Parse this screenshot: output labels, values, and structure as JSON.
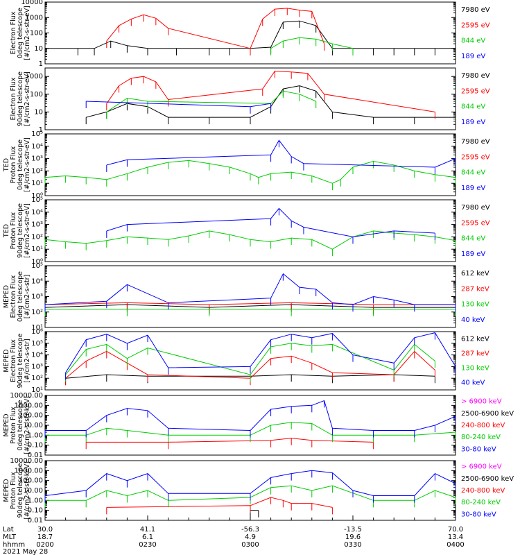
{
  "chart_data": [
    {
      "type": "line",
      "panel": 1,
      "yscale": "log",
      "ylabel_lines": [
        "Electron Flux",
        "0deg telescope",
        "[#/cm2-s-str-eV]"
      ],
      "ytick_labels": [
        "10000",
        "1000",
        "100",
        "10",
        "1"
      ],
      "ytick_values": [
        10000,
        1000,
        100,
        10,
        1
      ],
      "ylim": [
        1,
        10000
      ],
      "series": [
        {
          "name": "7980 eV",
          "color": "#000000",
          "x": [
            0,
            0.08,
            0.12,
            0.16,
            0.2,
            0.25,
            0.32,
            0.4,
            0.45,
            0.5,
            0.55,
            0.58,
            0.62,
            0.66,
            0.7,
            0.75,
            0.8,
            0.85,
            0.9,
            0.95,
            1.0
          ],
          "y": [
            10,
            10,
            10,
            30,
            15,
            10,
            10,
            10,
            10,
            10,
            12,
            500,
            600,
            300,
            10,
            10,
            10,
            10,
            10,
            10,
            10
          ]
        },
        {
          "name": "2595 eV",
          "color": "#ff0000",
          "x": [
            0.15,
            0.18,
            0.21,
            0.24,
            0.27,
            0.3,
            0.5,
            0.53,
            0.56,
            0.59,
            0.62,
            0.65,
            0.68
          ],
          "y": [
            30,
            300,
            800,
            1500,
            900,
            200,
            10,
            800,
            3500,
            4000,
            3000,
            2500,
            20
          ]
        },
        {
          "name": "844 eV",
          "color": "#00cc00",
          "x": [
            0.55,
            0.58,
            0.62,
            0.66,
            0.7,
            0.75
          ],
          "y": [
            10,
            30,
            50,
            40,
            20,
            10
          ]
        },
        {
          "name": "189 eV",
          "color": "#0000ff",
          "x": [],
          "y": []
        }
      ]
    },
    {
      "type": "line",
      "panel": 2,
      "yscale": "log",
      "ylabel_lines": [
        "Electron Flux",
        "90deg telescope",
        "[#/cm2-s-str-eV]"
      ],
      "ytick_labels": [
        "1000",
        "100",
        "10",
        "1"
      ],
      "ytick_values": [
        1000,
        100,
        10,
        1
      ],
      "ylim": [
        1,
        3000
      ],
      "series": [
        {
          "name": "7980 eV",
          "color": "#000000",
          "x": [
            0.1,
            0.15,
            0.2,
            0.25,
            0.3,
            0.4,
            0.5,
            0.55,
            0.58,
            0.62,
            0.66,
            0.7,
            0.8,
            0.9,
            1.0
          ],
          "y": [
            5,
            10,
            30,
            20,
            5,
            5,
            5,
            20,
            200,
            300,
            150,
            10,
            5,
            5,
            5
          ]
        },
        {
          "name": "2595 eV",
          "color": "#ff0000",
          "x": [
            0.15,
            0.18,
            0.21,
            0.24,
            0.27,
            0.3,
            0.53,
            0.56,
            0.6,
            0.64,
            0.68,
            0.95
          ],
          "y": [
            30,
            300,
            800,
            1000,
            500,
            50,
            200,
            2000,
            1800,
            1500,
            100,
            10
          ]
        },
        {
          "name": "844 eV",
          "color": "#00cc00",
          "x": [
            0.15,
            0.2,
            0.25,
            0.55,
            0.58,
            0.62,
            0.66
          ],
          "y": [
            10,
            60,
            40,
            30,
            150,
            100,
            40
          ]
        },
        {
          "name": "189 eV",
          "color": "#0000ff",
          "x": [
            0.1,
            0.5,
            0.55
          ],
          "y": [
            40,
            20,
            30
          ]
        }
      ]
    },
    {
      "type": "line",
      "panel": 3,
      "yscale": "log",
      "ylabel_lines": [
        "TED",
        "Proton Flux",
        "0deg telescope",
        "[#/cm2-s-str-eV]"
      ],
      "ytick_labels": [
        "10⁵",
        "10⁴",
        "10³",
        "10²",
        "10¹",
        "10⁰"
      ],
      "ytick_values": [
        100000,
        10000,
        1000,
        100,
        10,
        1
      ],
      "ylim": [
        1,
        100000
      ],
      "series": [
        {
          "name": "7980 eV",
          "color": "#000000",
          "x": [],
          "y": []
        },
        {
          "name": "2595 eV",
          "color": "#ff0000",
          "x": [],
          "y": []
        },
        {
          "name": "844 eV",
          "color": "#00cc00",
          "x": [
            0,
            0.05,
            0.1,
            0.15,
            0.2,
            0.25,
            0.3,
            0.35,
            0.4,
            0.45,
            0.5,
            0.52,
            0.55,
            0.6,
            0.65,
            0.7,
            0.72,
            0.75,
            0.8,
            0.85,
            0.9,
            0.95,
            1.0
          ],
          "y": [
            30,
            40,
            30,
            20,
            60,
            200,
            500,
            700,
            400,
            200,
            60,
            30,
            60,
            80,
            40,
            10,
            20,
            200,
            600,
            300,
            100,
            50,
            30
          ]
        },
        {
          "name": "189 eV",
          "color": "#0000ff",
          "x": [
            0.15,
            0.2,
            0.55,
            0.57,
            0.6,
            0.63,
            0.95,
            1.0
          ],
          "y": [
            300,
            800,
            2000,
            30000,
            1500,
            400,
            200,
            1000
          ]
        }
      ]
    },
    {
      "type": "line",
      "panel": 4,
      "yscale": "log",
      "ylabel_lines": [
        "TED",
        "Proton Flux",
        "90deg telescope",
        "[#/cm2-s-str-eV]"
      ],
      "ytick_labels": [
        "10⁵",
        "10⁴",
        "10³",
        "10²",
        "10¹",
        "10⁰"
      ],
      "ytick_values": [
        100000,
        10000,
        1000,
        100,
        10,
        1
      ],
      "ylim": [
        1,
        100000
      ],
      "series": [
        {
          "name": "7980 eV",
          "color": "#000000",
          "x": [],
          "y": []
        },
        {
          "name": "2595 eV",
          "color": "#ff0000",
          "x": [],
          "y": []
        },
        {
          "name": "844 eV",
          "color": "#00cc00",
          "x": [
            0,
            0.05,
            0.1,
            0.15,
            0.2,
            0.25,
            0.3,
            0.35,
            0.4,
            0.45,
            0.5,
            0.55,
            0.6,
            0.65,
            0.7,
            0.75,
            0.8,
            0.85,
            0.9,
            0.95,
            1.0
          ],
          "y": [
            60,
            40,
            30,
            50,
            100,
            80,
            60,
            120,
            300,
            150,
            60,
            40,
            80,
            60,
            10,
            100,
            300,
            200,
            150,
            100,
            50
          ]
        },
        {
          "name": "189 eV",
          "color": "#0000ff",
          "x": [
            0.15,
            0.2,
            0.55,
            0.57,
            0.6,
            0.63,
            0.75,
            0.85,
            0.95
          ],
          "y": [
            300,
            1000,
            3000,
            20000,
            2000,
            600,
            100,
            300,
            200
          ]
        }
      ]
    },
    {
      "type": "line",
      "panel": 5,
      "yscale": "log",
      "ylabel_lines": [
        "MEPED",
        "Electron Flux",
        "0deg telescope",
        "[#/cm2-s-str]"
      ],
      "ytick_labels": [
        "10⁵",
        "10⁴",
        "10³",
        "10²",
        "10¹"
      ],
      "ytick_values": [
        100000,
        10000,
        1000,
        100,
        10
      ],
      "ylim": [
        10,
        100000
      ],
      "series": [
        {
          "name": "612 keV",
          "color": "#000000",
          "x": [
            0,
            0.2,
            0.4,
            0.6,
            0.8,
            1.0
          ],
          "y": [
            200,
            300,
            200,
            300,
            200,
            200
          ]
        },
        {
          "name": "287 keV",
          "color": "#ff0000",
          "x": [
            0,
            0.2,
            0.4,
            0.6,
            0.8,
            1.0
          ],
          "y": [
            300,
            400,
            300,
            400,
            300,
            300
          ]
        },
        {
          "name": "130 keV",
          "color": "#00cc00",
          "x": [
            0,
            0.2,
            0.4,
            0.6,
            0.8,
            1.0
          ],
          "y": [
            150,
            150,
            150,
            150,
            150,
            150
          ]
        },
        {
          "name": "40 keV",
          "color": "#0000ff",
          "x": [
            0,
            0.15,
            0.2,
            0.3,
            0.55,
            0.58,
            0.62,
            0.66,
            0.7,
            0.75,
            0.8,
            0.85,
            0.9,
            1.0
          ],
          "y": [
            300,
            500,
            6000,
            400,
            800,
            30000,
            4000,
            3000,
            400,
            300,
            1000,
            600,
            300,
            300
          ]
        }
      ]
    },
    {
      "type": "line",
      "panel": 6,
      "yscale": "log",
      "ylabel_lines": [
        "MEPED",
        "Electron Flux",
        "90deg telescope",
        "[#/cm2-s-str]"
      ],
      "ytick_labels": [
        "10⁶",
        "10⁵",
        "10⁴",
        "10³",
        "10²",
        "10¹"
      ],
      "ytick_values": [
        1000000,
        100000,
        10000,
        1000,
        100,
        10
      ],
      "ylim": [
        10,
        1000000
      ],
      "series": [
        {
          "name": "612 keV",
          "color": "#000000",
          "x": [
            0.05,
            0.15,
            0.25,
            0.5,
            0.6,
            0.7,
            0.85,
            0.95
          ],
          "y": [
            100,
            200,
            150,
            150,
            200,
            150,
            200,
            150
          ]
        },
        {
          "name": "287 keV",
          "color": "#ff0000",
          "x": [
            0.05,
            0.1,
            0.15,
            0.2,
            0.25,
            0.5,
            0.55,
            0.6,
            0.65,
            0.7,
            0.85,
            0.9,
            0.95
          ],
          "y": [
            100,
            3000,
            20000,
            2000,
            200,
            100,
            5000,
            8000,
            2000,
            300,
            200,
            20000,
            500
          ]
        },
        {
          "name": "130 keV",
          "color": "#00cc00",
          "x": [
            0.05,
            0.1,
            0.15,
            0.2,
            0.25,
            0.5,
            0.55,
            0.6,
            0.65,
            0.7,
            0.85,
            0.9,
            0.95
          ],
          "y": [
            200,
            30000,
            80000,
            5000,
            40000,
            200,
            50000,
            100000,
            60000,
            80000,
            500,
            80000,
            3000
          ]
        },
        {
          "name": "40 keV",
          "color": "#0000ff",
          "x": [
            0.05,
            0.1,
            0.15,
            0.2,
            0.25,
            0.3,
            0.5,
            0.55,
            0.6,
            0.65,
            0.7,
            0.75,
            0.85,
            0.9,
            0.95,
            1.0
          ],
          "y": [
            300,
            200000,
            600000,
            100000,
            500000,
            800,
            1000,
            200000,
            600000,
            300000,
            700000,
            10000,
            2000,
            300000,
            800000,
            1000
          ]
        }
      ]
    },
    {
      "type": "line",
      "panel": 7,
      "yscale": "log",
      "ylabel_lines": [
        "MEPED",
        "Proton Flux",
        "0deg telescope",
        "[#/cm2-s-str-keV]"
      ],
      "ytick_labels": [
        "10000.00",
        "1000.00",
        "100.00",
        "10.00",
        "1.00",
        "0.10",
        "0.01"
      ],
      "ytick_values": [
        10000,
        1000,
        100,
        10,
        1,
        0.1,
        0.01
      ],
      "ylim": [
        0.01,
        10000
      ],
      "series": [
        {
          "name": "> 6900 keV",
          "color": "#ff00ff",
          "x": [],
          "y": []
        },
        {
          "name": "2500-6900 keV",
          "color": "#000000",
          "x": [],
          "y": []
        },
        {
          "name": "240-800 keV",
          "color": "#ff0000",
          "x": [
            0.1,
            0.3,
            0.55,
            0.6,
            0.65,
            0.8
          ],
          "y": [
            0.2,
            0.2,
            0.3,
            0.5,
            0.3,
            0.2
          ]
        },
        {
          "name": "80-240 keV",
          "color": "#00cc00",
          "x": [
            0,
            0.1,
            0.15,
            0.2,
            0.3,
            0.5,
            0.55,
            0.6,
            0.65,
            0.7,
            0.8,
            0.9,
            1.0
          ],
          "y": [
            1,
            1,
            5,
            3,
            1,
            1,
            10,
            20,
            15,
            1,
            1,
            1,
            2
          ]
        },
        {
          "name": "30-80 keV",
          "color": "#0000ff",
          "x": [
            0,
            0.1,
            0.15,
            0.2,
            0.25,
            0.3,
            0.5,
            0.55,
            0.6,
            0.65,
            0.68,
            0.7,
            0.8,
            0.9,
            0.95,
            1.0
          ],
          "y": [
            3,
            3,
            100,
            500,
            300,
            5,
            3,
            400,
            800,
            1000,
            3000,
            5,
            3,
            3,
            10,
            80
          ]
        }
      ]
    },
    {
      "type": "line",
      "panel": 8,
      "yscale": "log",
      "ylabel_lines": [
        "MEPED",
        "Proton Flux",
        "90deg telescope",
        "[#/cm2-s-str-keV]"
      ],
      "ytick_labels": [
        "10000.00",
        "1000.00",
        "100.00",
        "10.00",
        "1.00",
        "0.10",
        "0.01"
      ],
      "ytick_values": [
        10000,
        1000,
        100,
        10,
        1,
        0.1,
        0.01
      ],
      "ylim": [
        0.01,
        10000
      ],
      "series": [
        {
          "name": "> 6900 keV",
          "color": "#ff00ff",
          "x": [],
          "y": []
        },
        {
          "name": "2500-6900 keV",
          "color": "#000000",
          "x": [
            0.5,
            0.52
          ],
          "y": [
            0.1,
            0.1
          ]
        },
        {
          "name": "240-800 keV",
          "color": "#ff0000",
          "x": [
            0.15,
            0.5,
            0.55,
            0.58,
            0.6,
            0.65,
            0.7
          ],
          "y": [
            0.2,
            0.3,
            2,
            1,
            0.5,
            0.5,
            0.2
          ]
        },
        {
          "name": "80-240 keV",
          "color": "#00cc00",
          "x": [
            0,
            0.1,
            0.15,
            0.2,
            0.25,
            0.3,
            0.5,
            0.55,
            0.6,
            0.65,
            0.7,
            0.8,
            0.9,
            0.95,
            1.0
          ],
          "y": [
            1,
            1,
            10,
            3,
            10,
            1,
            2,
            20,
            30,
            10,
            30,
            1,
            1,
            10,
            2
          ]
        },
        {
          "name": "30-80 keV",
          "color": "#0000ff",
          "x": [
            0,
            0.1,
            0.15,
            0.2,
            0.25,
            0.3,
            0.5,
            0.55,
            0.6,
            0.65,
            0.7,
            0.75,
            0.8,
            0.9,
            0.95,
            1.0
          ],
          "y": [
            3,
            10,
            500,
            100,
            500,
            5,
            5,
            200,
            500,
            1000,
            600,
            10,
            3,
            3,
            500,
            50
          ]
        }
      ]
    }
  ],
  "xaxis": {
    "rows": [
      {
        "label": "Lat",
        "values": [
          "30.0",
          "41.1",
          "-56.3",
          "-13.5",
          "70.0"
        ]
      },
      {
        "label": "MLT",
        "values": [
          "18.7",
          "6.1",
          "4.9",
          "19.6",
          "13.4"
        ]
      },
      {
        "label": "hhmm",
        "values": [
          "0200",
          "0230",
          "0300",
          "0330",
          "0400"
        ]
      }
    ],
    "date": "2021 May 28"
  }
}
